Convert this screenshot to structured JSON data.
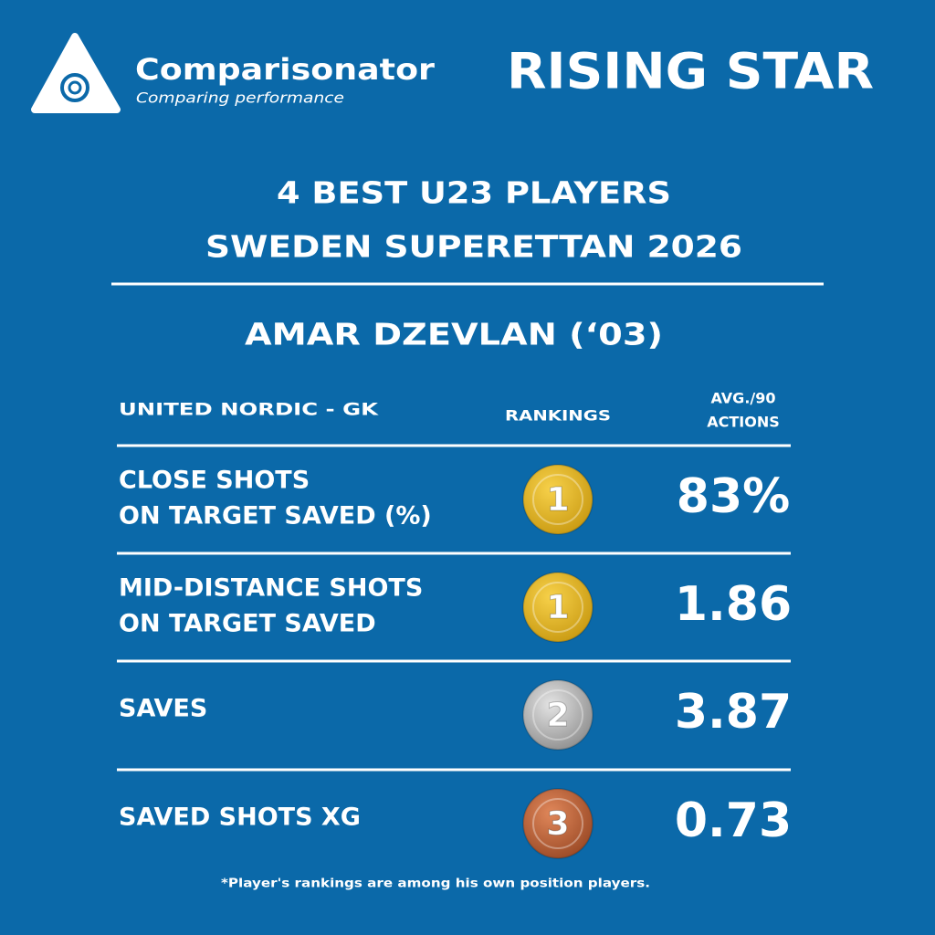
{
  "header": {
    "brand": "Comparisonator",
    "tagline": "Comparing performance",
    "badge": "RISING STAR"
  },
  "title": [
    "4 BEST U23 PLAYERS",
    "SWEDEN SUPERETTAN 2026"
  ],
  "player": "AMAR DZEVLAN (‘03)",
  "table": {
    "columns": {
      "team_position": "UNITED NORDIC - GK",
      "rankings": "RANKINGS",
      "average": [
        "AVG./90",
        "ACTIONS"
      ]
    },
    "rows": [
      {
        "label": [
          "CLOSE SHOTS",
          "ON TARGET SAVED (%)"
        ],
        "rank": 1,
        "value": "83%"
      },
      {
        "label": [
          "MID-DISTANCE SHOTS",
          "ON TARGET SAVED"
        ],
        "rank": 1,
        "value": "1.86"
      },
      {
        "label": [
          "SAVES"
        ],
        "rank": 2,
        "value": "3.87"
      },
      {
        "label": [
          "SAVED SHOTS XG"
        ],
        "rank": 3,
        "value": "0.73"
      }
    ]
  },
  "footnote": "*Player's rankings are among his own position players."
}
